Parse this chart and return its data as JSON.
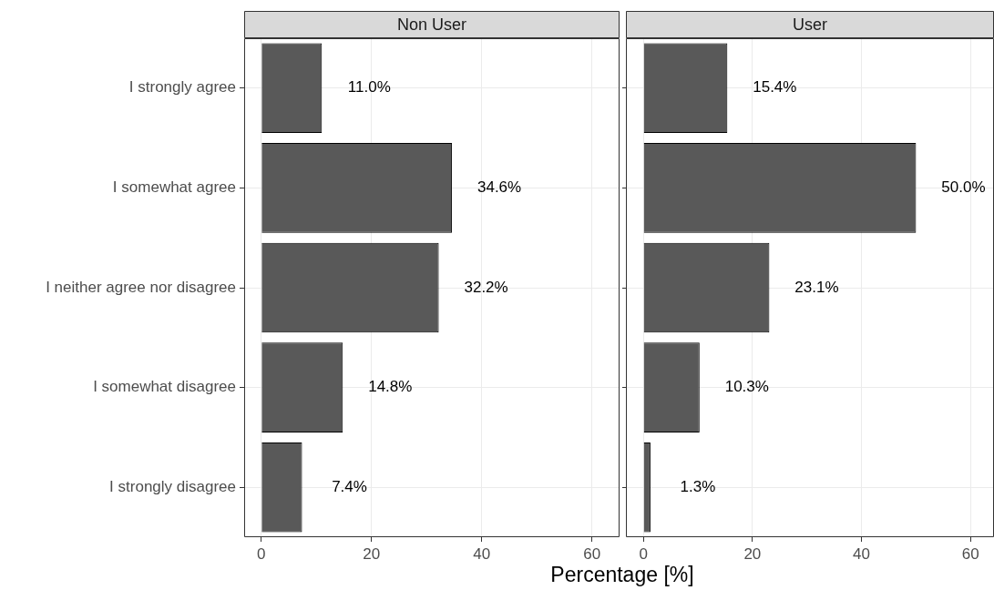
{
  "chart_data": [
    {
      "type": "bar",
      "title": "Non User",
      "orientation": "horizontal",
      "xlabel": "Percentage [%]",
      "categories": [
        "I strongly agree",
        "I somewhat agree",
        "I neither agree nor disagree",
        "I somewhat disagree",
        "I strongly disagree"
      ],
      "values": [
        11.0,
        34.6,
        32.2,
        14.8,
        7.4
      ],
      "color": "#595959",
      "value_labels": [
        "11.0%",
        "34.6%",
        "32.2%",
        "14.8%",
        "7.4%"
      ],
      "xlim": [
        -3.1,
        65
      ],
      "xticks": [
        0,
        20,
        40,
        60
      ],
      "grid": true,
      "legend": false
    },
    {
      "type": "bar",
      "title": "User",
      "orientation": "horizontal",
      "categories": [
        null,
        null,
        null,
        null,
        null
      ],
      "values": [
        15.4,
        50.0,
        23.1,
        10.3,
        1.3
      ],
      "color": "#595959",
      "value_labels": [
        "15.4%",
        "50.0%",
        "23.1%",
        "10.3%",
        "1.3%"
      ],
      "xlim": [
        -3.2,
        64.3
      ],
      "xticks": [
        0,
        20,
        40,
        60
      ],
      "grid": true,
      "legend": false,
      "tick_labels": "x"
    }
  ]
}
